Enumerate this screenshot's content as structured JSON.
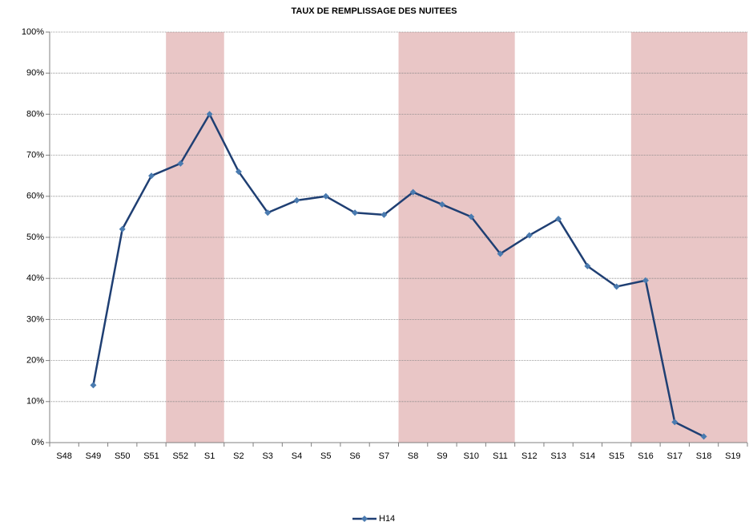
{
  "chart_data": {
    "type": "line",
    "title": "TAUX DE REMPLISSAGE DES NUITEES",
    "categories": [
      "S48",
      "S49",
      "S50",
      "S51",
      "S52",
      "S1",
      "S2",
      "S3",
      "S4",
      "S5",
      "S6",
      "S7",
      "S8",
      "S9",
      "S10",
      "S11",
      "S12",
      "S13",
      "S14",
      "S15",
      "S16",
      "S17",
      "S18",
      "S19"
    ],
    "series": [
      {
        "name": "H14",
        "color": "#1f3f73",
        "marker_color": "#4a7bb0",
        "values": [
          null,
          14,
          52,
          65,
          68,
          80,
          66,
          56,
          59,
          60,
          56,
          55.5,
          61,
          58,
          55,
          46,
          50.5,
          54.5,
          43,
          38,
          39.5,
          5,
          1.5,
          null
        ]
      }
    ],
    "ylim": [
      0,
      100
    ],
    "yticks": [
      {
        "value": 0,
        "label": "0%"
      },
      {
        "value": 10,
        "label": "10%"
      },
      {
        "value": 20,
        "label": "20%"
      },
      {
        "value": 30,
        "label": "30%"
      },
      {
        "value": 40,
        "label": "40%"
      },
      {
        "value": 50,
        "label": "50%"
      },
      {
        "value": 60,
        "label": "60%"
      },
      {
        "value": 70,
        "label": "70%"
      },
      {
        "value": 80,
        "label": "80%"
      },
      {
        "value": 90,
        "label": "90%"
      },
      {
        "value": 100,
        "label": "100%"
      }
    ],
    "grid": true,
    "highlight_bands": [
      [
        "S52",
        "S1"
      ],
      [
        "S8",
        "S11"
      ],
      [
        "S16",
        "S19"
      ]
    ],
    "highlight_color": "#e9c6c6",
    "legend": "bottom"
  }
}
